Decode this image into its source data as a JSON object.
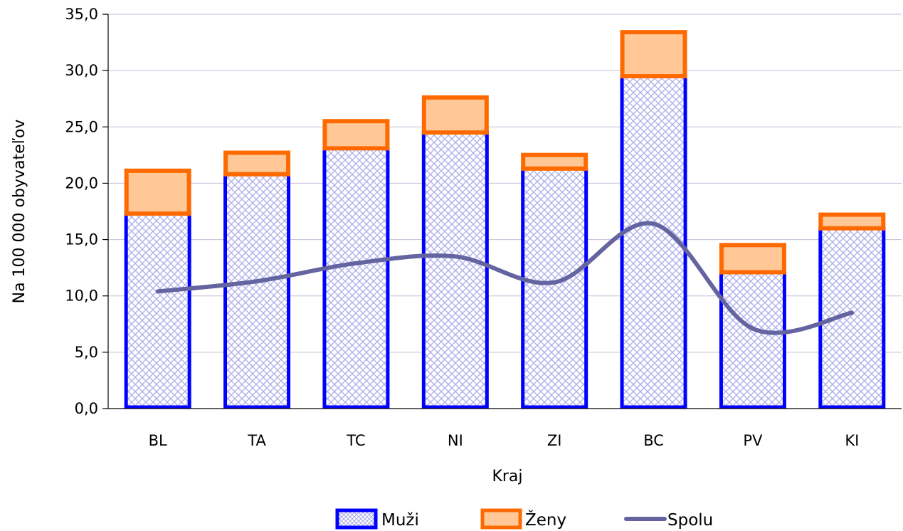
{
  "chart_data": {
    "type": "bar",
    "stacked": true,
    "categories": [
      "BL",
      "TA",
      "TC",
      "NI",
      "ZI",
      "BC",
      "PV",
      "KI"
    ],
    "series": [
      {
        "name": "Muži",
        "type": "bar",
        "values": [
          17.3,
          20.8,
          23.1,
          24.5,
          21.3,
          29.5,
          12.1,
          16.0
        ],
        "color": "#0000ff",
        "fill_pattern": "crosshatch",
        "fill_color": "#b8b8f0"
      },
      {
        "name": "Ženy",
        "type": "bar",
        "values": [
          4.0,
          2.1,
          2.6,
          3.3,
          1.4,
          4.1,
          2.6,
          1.4
        ],
        "color": "#ff6a00",
        "fill_color": "#ffc896"
      },
      {
        "name": "Spolu",
        "type": "line",
        "smooth": true,
        "values": [
          10.4,
          11.3,
          12.9,
          13.5,
          11.2,
          16.4,
          7.1,
          8.5
        ],
        "color": "#6464a0"
      }
    ],
    "xlabel": "Kraj",
    "ylabel": "Na 100 000 obyvateľov",
    "ylim": [
      0,
      35
    ],
    "y_ticks": [
      "0,0",
      "5,0",
      "10,0",
      "15,0",
      "20,0",
      "25,0",
      "30,0",
      "35,0"
    ],
    "y_tick_values": [
      0,
      5,
      10,
      15,
      20,
      25,
      30,
      35
    ],
    "grid": true,
    "grid_color": "#c8bcd8",
    "legend_position": "bottom"
  }
}
